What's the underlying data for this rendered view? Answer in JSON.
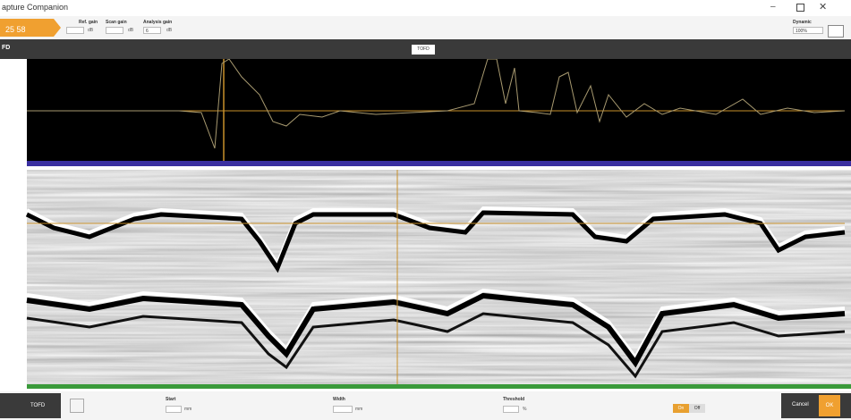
{
  "title_bar": {
    "title": "apture Companion"
  },
  "toolbar": {
    "timer": "25 58",
    "ref_gain": "Ref. gain",
    "scan_gain": "Scan gain",
    "analysis_gain": "Analysis gain",
    "analysis_gain_value": "6",
    "unit": "dB",
    "dynamic_label": "Dynamic",
    "dynamic_value": "100%"
  },
  "view": {
    "tab": "TOFD",
    "left_label": "FD"
  },
  "bottom": {
    "mode": "TOFD",
    "start": "Start",
    "width": "Width",
    "threshold": "Threshold",
    "mm": "mm",
    "percent": "%",
    "on": "On",
    "off": "Off",
    "cancel": "Cancel",
    "ok": "OK"
  }
}
